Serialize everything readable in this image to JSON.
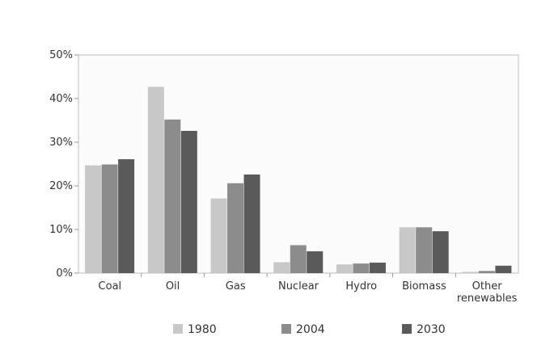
{
  "chart_data": {
    "type": "bar",
    "categories": [
      [
        "Coal"
      ],
      [
        "Oil"
      ],
      [
        "Gas"
      ],
      [
        "Nuclear"
      ],
      [
        "Hydro"
      ],
      [
        "Biomass"
      ],
      [
        "Other",
        "renewables"
      ]
    ],
    "series": [
      {
        "name": "1980",
        "color": "#c8c8c8",
        "values": [
          24.7,
          42.7,
          17.1,
          2.5,
          2.0,
          10.5,
          0.3
        ]
      },
      {
        "name": "2004",
        "color": "#8c8c8c",
        "values": [
          24.9,
          35.2,
          20.6,
          6.4,
          2.2,
          10.5,
          0.5
        ]
      },
      {
        "name": "2030",
        "color": "#5a5a5a",
        "values": [
          26.1,
          32.6,
          22.6,
          5.0,
          2.4,
          9.6,
          1.7
        ]
      }
    ],
    "yticks": [
      "0%",
      "10%",
      "20%",
      "30%",
      "40%",
      "50%"
    ],
    "ylim": [
      0,
      50
    ],
    "grid": false,
    "legend": "bottom"
  }
}
